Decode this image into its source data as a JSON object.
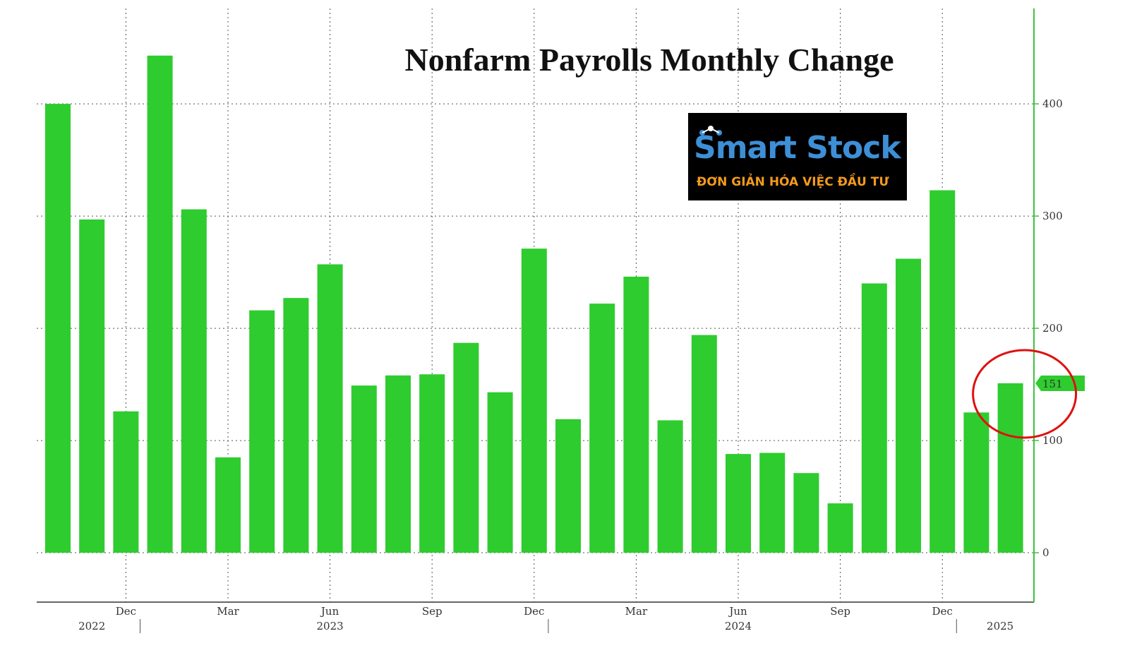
{
  "chart_data": {
    "type": "bar",
    "title": "Nonfarm Payrolls Monthly Change",
    "ylim": [
      -44,
      485
    ],
    "y_ticks": [
      0,
      100,
      200,
      300,
      400
    ],
    "grid": true,
    "values": [
      400,
      297,
      126,
      443,
      306,
      85,
      216,
      227,
      257,
      149,
      158,
      159,
      187,
      143,
      271,
      119,
      222,
      246,
      118,
      194,
      88,
      89,
      71,
      44,
      240,
      262,
      323,
      125,
      151
    ],
    "month_ticks": [
      {
        "label": "Dec",
        "index": 2
      },
      {
        "label": "Mar",
        "index": 5
      },
      {
        "label": "Jun",
        "index": 8
      },
      {
        "label": "Sep",
        "index": 11
      },
      {
        "label": "Dec",
        "index": 14
      },
      {
        "label": "Mar",
        "index": 17
      },
      {
        "label": "Jun",
        "index": 20
      },
      {
        "label": "Sep",
        "index": 23
      },
      {
        "label": "Dec",
        "index": 26
      }
    ],
    "year_labels": [
      {
        "label": "2022",
        "index": 1
      },
      {
        "label": "2023",
        "index": 8
      },
      {
        "label": "2024",
        "index": 20
      },
      {
        "label": "2025",
        "index": 27.7
      }
    ],
    "last_value_label": "151",
    "highlight_index": 28
  },
  "logo": {
    "name": "Smart Stock",
    "tagline": "ĐƠN GIẢN HÓA VIỆC ĐẦU TƯ"
  },
  "colors": {
    "bar": "#2ecc2e",
    "axis": "#3cc43c",
    "grid": "#555555",
    "highlight_circle": "#e01010",
    "logo_blue": "#3d8fd6",
    "logo_orange": "#f39a1e"
  }
}
